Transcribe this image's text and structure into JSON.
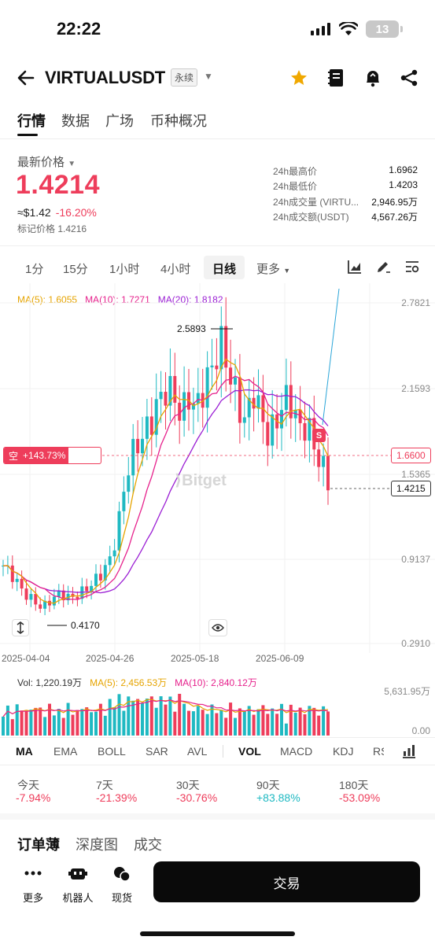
{
  "status": {
    "time": "22:22",
    "battery": "13"
  },
  "header": {
    "symbol": "VIRTUALUSDT",
    "tag": "永续"
  },
  "tabs": [
    "行情",
    "数据",
    "广场",
    "币种概况"
  ],
  "price": {
    "label": "最新价格",
    "value": "1.4214",
    "usd": "≈$1.42",
    "change": "-16.20%",
    "mark": "标记价格 1.4216"
  },
  "stats": [
    {
      "label": "24h最高价",
      "value": "1.6962"
    },
    {
      "label": "24h最低价",
      "value": "1.4203"
    },
    {
      "label": "24h成交量 (VIRTU...",
      "value": "2,946.95万"
    },
    {
      "label": "24h成交额(USDT)",
      "value": "4,567.26万"
    }
  ],
  "intervals": [
    "1分",
    "15分",
    "1小时",
    "4小时",
    "日线",
    "更多"
  ],
  "ma_legend": {
    "ma5": "MA(5): 1.6055",
    "ma10": "MA(10): 1.7271",
    "ma20": "MA(20): 1.8182"
  },
  "y_axis": [
    "2.7821",
    "2.1593",
    "1.5365",
    "0.9137",
    "0.2910"
  ],
  "x_axis": [
    "2025-04-04",
    "2025-04-26",
    "2025-05-18",
    "2025-06-09"
  ],
  "annotations": {
    "high": "2.5893",
    "low": "0.4170",
    "position_price": "1.6600",
    "current_price": "1.4215",
    "short_label": "空",
    "short_value": "+143.73%",
    "sell_marker": "S",
    "watermark": "Bitget"
  },
  "vol_legend": {
    "vol": "Vol: 1,220.19万",
    "ma5": "MA(5): 2,456.53万",
    "ma10": "MA(10): 2,840.12万"
  },
  "vol_axis": [
    "5,631.95万",
    "0.00"
  ],
  "indicator_tabs": [
    "MA",
    "EMA",
    "BOLL",
    "SAR",
    "AVL",
    "VOL",
    "MACD",
    "KDJ",
    "RS"
  ],
  "performance": [
    {
      "label": "今天",
      "value": "-7.94%"
    },
    {
      "label": "7天",
      "value": "-21.39%"
    },
    {
      "label": "30天",
      "value": "-30.76%"
    },
    {
      "label": "90天",
      "value": "+83.88%"
    },
    {
      "label": "180天",
      "value": "-53.09%"
    }
  ],
  "section_tabs": [
    "订单薄",
    "深度图",
    "成交"
  ],
  "bottom": {
    "more": "更多",
    "bot": "机器人",
    "spot": "现货",
    "trade": "交易"
  },
  "colors": {
    "up": "#1fb9c2",
    "down": "#ee3d5b",
    "ma5": "#e6a400",
    "ma10": "#e6218c",
    "ma20": "#9b1fd4"
  }
}
